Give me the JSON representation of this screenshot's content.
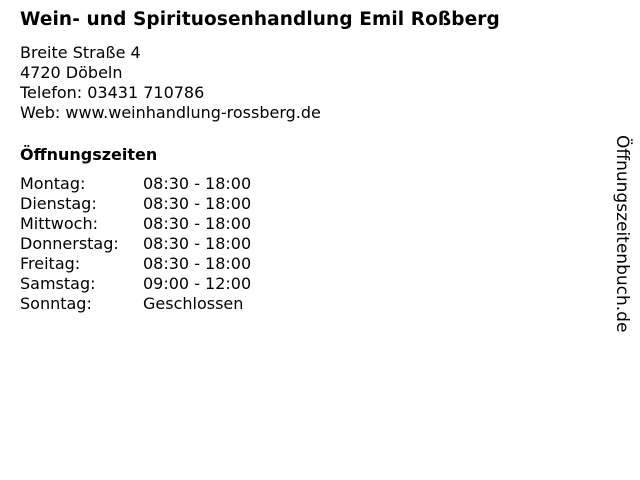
{
  "business": {
    "name": "Wein- und Spirituosenhandlung Emil Roßberg",
    "street": "Breite Straße 4",
    "city": "4720 Döbeln",
    "phone": "Telefon: 03431 710786",
    "web": "Web: www.weinhandlung-rossberg.de"
  },
  "opening_hours": {
    "heading": "Öffnungszeiten",
    "rows": [
      {
        "day": "Montag:",
        "time": "08:30 - 18:00"
      },
      {
        "day": "Dienstag:",
        "time": "08:30 - 18:00"
      },
      {
        "day": "Mittwoch:",
        "time": "08:30 - 18:00"
      },
      {
        "day": "Donnerstag:",
        "time": "08:30 - 18:00"
      },
      {
        "day": "Freitag:",
        "time": "08:30 - 18:00"
      },
      {
        "day": "Samstag:",
        "time": "09:00 - 12:00"
      },
      {
        "day": "Sonntag:",
        "time": "Geschlossen"
      }
    ]
  },
  "watermark": "Öffnungszeitenbuch.de"
}
